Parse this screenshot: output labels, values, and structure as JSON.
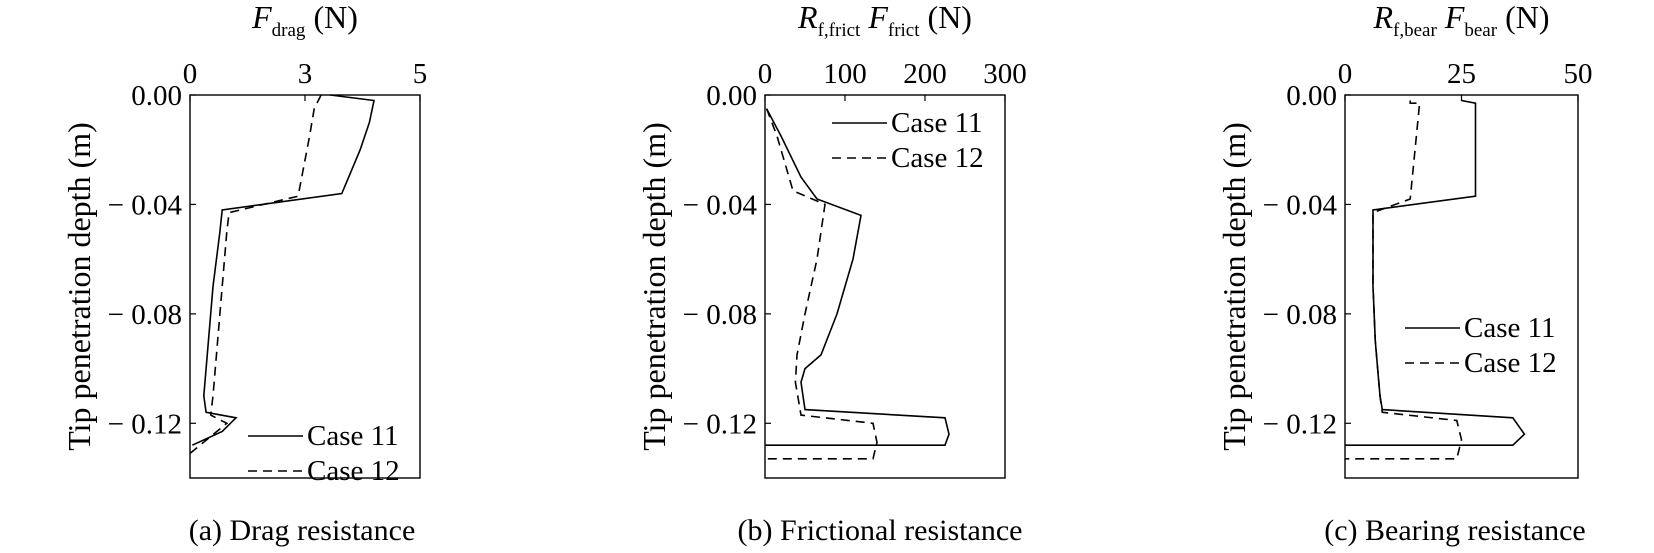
{
  "chart_data": [
    {
      "type": "line",
      "caption": "(a) Drag resistance",
      "xlabel": {
        "var": "F",
        "sub": "drag",
        "unit": "(N)"
      },
      "ylabel": "Tip penetration depth (m)",
      "xlim": [
        0,
        5
      ],
      "ylim": [
        -0.14,
        0
      ],
      "xticks": [
        "0",
        "3",
        "5"
      ],
      "xtick_values": [
        0,
        2.5,
        5
      ],
      "yticks": [
        "0.00",
        "− 0.04",
        "− 0.08",
        "− 0.12"
      ],
      "ytick_values": [
        0,
        -0.04,
        -0.08,
        -0.12
      ],
      "legend_position": "bottom-right",
      "series": [
        {
          "name": "Case 11",
          "style": "solid",
          "x": [
            3.05,
            4.0,
            3.9,
            3.7,
            3.3,
            0.7,
            0.65,
            0.5,
            0.4,
            0.3,
            0.35,
            1.0,
            0.7,
            0.05
          ],
          "y": [
            0.0,
            -0.002,
            -0.01,
            -0.02,
            -0.036,
            -0.042,
            -0.05,
            -0.07,
            -0.09,
            -0.11,
            -0.116,
            -0.118,
            -0.123,
            -0.128
          ]
        },
        {
          "name": "Case 12",
          "style": "dashed",
          "x": [
            2.85,
            2.7,
            2.6,
            2.35,
            0.85,
            0.8,
            0.7,
            0.6,
            0.5,
            0.45,
            0.8,
            0.0
          ],
          "y": [
            0.0,
            -0.005,
            -0.015,
            -0.037,
            -0.043,
            -0.05,
            -0.07,
            -0.09,
            -0.11,
            -0.117,
            -0.12,
            -0.131
          ]
        }
      ]
    },
    {
      "type": "line",
      "caption": "(b) Frictional resistance",
      "xlabel": {
        "var": "R",
        "sub": "f,frict",
        "var2": "F",
        "sub2": "frict",
        "unit": "(N)"
      },
      "ylabel": "Tip penetration depth (m)",
      "xlim": [
        0,
        300
      ],
      "ylim": [
        -0.14,
        0
      ],
      "xticks": [
        "0",
        "100",
        "200",
        "300"
      ],
      "xtick_values": [
        0,
        100,
        200,
        300
      ],
      "yticks": [
        "0.00",
        "− 0.04",
        "− 0.08",
        "− 0.12"
      ],
      "ytick_values": [
        0,
        -0.04,
        -0.08,
        -0.12
      ],
      "legend_position": "top-right",
      "series": [
        {
          "name": "Case 11",
          "style": "solid",
          "x": [
            2,
            20,
            45,
            65,
            120,
            110,
            90,
            70,
            50,
            45,
            50,
            225,
            230,
            225,
            0
          ],
          "y": [
            -0.005,
            -0.015,
            -0.03,
            -0.038,
            -0.044,
            -0.06,
            -0.08,
            -0.095,
            -0.1,
            -0.105,
            -0.115,
            -0.118,
            -0.124,
            -0.128,
            -0.128
          ]
        },
        {
          "name": "Case 12",
          "style": "dashed",
          "x": [
            2,
            15,
            35,
            75,
            65,
            50,
            40,
            38,
            45,
            135,
            140,
            135,
            0
          ],
          "y": [
            -0.005,
            -0.015,
            -0.035,
            -0.04,
            -0.06,
            -0.08,
            -0.095,
            -0.105,
            -0.117,
            -0.12,
            -0.127,
            -0.133,
            -0.133
          ]
        }
      ]
    },
    {
      "type": "line",
      "caption": "(c) Bearing resistance",
      "xlabel": {
        "var": "R",
        "sub": "f,bear",
        "var2": "F",
        "sub2": "bear",
        "unit": "(N)"
      },
      "ylabel": "Tip penetration depth (m)",
      "xlim": [
        0,
        50
      ],
      "ylim": [
        -0.14,
        0
      ],
      "xticks": [
        "0",
        "25",
        "50"
      ],
      "xtick_values": [
        0,
        25,
        50
      ],
      "yticks": [
        "0.00",
        "− 0.04",
        "− 0.08",
        "− 0.12"
      ],
      "ytick_values": [
        0,
        -0.04,
        -0.08,
        -0.12
      ],
      "legend_position": "right",
      "series": [
        {
          "name": "Case 11",
          "style": "solid",
          "x": [
            25,
            28,
            28,
            6,
            6,
            6.5,
            7.5,
            8,
            36,
            38.5,
            36,
            0
          ],
          "y": [
            -0.002,
            -0.003,
            -0.037,
            -0.042,
            -0.07,
            -0.09,
            -0.11,
            -0.115,
            -0.118,
            -0.124,
            -0.128,
            -0.128
          ]
        },
        {
          "name": "Case 12",
          "style": "dashed",
          "x": [
            14,
            14,
            16,
            14,
            6,
            6,
            6.5,
            7.5,
            8,
            24,
            25,
            24,
            0
          ],
          "y": [
            -0.002,
            -0.003,
            -0.003,
            -0.038,
            -0.043,
            -0.07,
            -0.09,
            -0.11,
            -0.116,
            -0.119,
            -0.126,
            -0.133,
            -0.133
          ]
        }
      ]
    }
  ]
}
